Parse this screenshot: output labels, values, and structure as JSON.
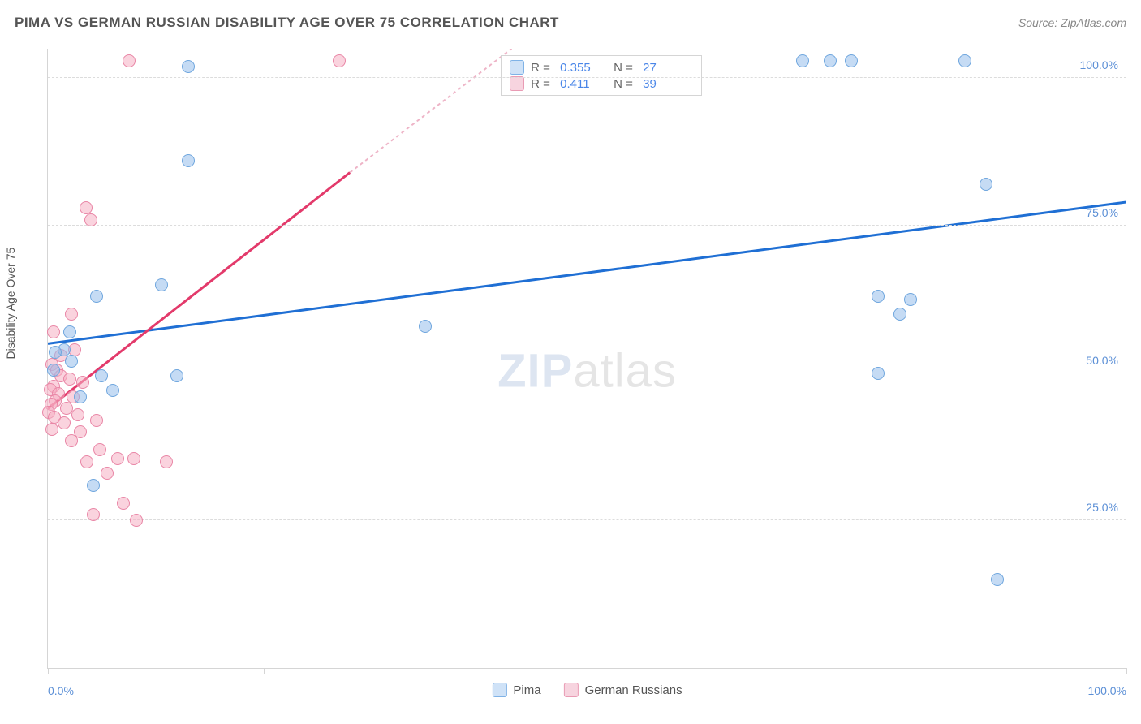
{
  "title": "PIMA VS GERMAN RUSSIAN DISABILITY AGE OVER 75 CORRELATION CHART",
  "source": "Source: ZipAtlas.com",
  "y_axis_label": "Disability Age Over 75",
  "watermark_zip": "ZIP",
  "watermark_atlas": "atlas",
  "chart": {
    "type": "scatter",
    "xlim": [
      0,
      100
    ],
    "ylim": [
      0,
      105
    ],
    "x_tick_positions": [
      0,
      20,
      40,
      60,
      80,
      100
    ],
    "y_ticks": [
      {
        "pos": 25,
        "label": "25.0%"
      },
      {
        "pos": 50,
        "label": "50.0%"
      },
      {
        "pos": 75,
        "label": "75.0%"
      },
      {
        "pos": 100,
        "label": "100.0%"
      }
    ],
    "x_labels": {
      "min": "0.0%",
      "max": "100.0%"
    },
    "background_color": "#ffffff",
    "grid_color": "#dcdcdc",
    "marker_radius": 8,
    "series": [
      {
        "name": "Pima",
        "fill_color": "rgba(150,190,235,0.55)",
        "stroke_color": "#6fa6de",
        "trend_color": "#1f6fd4",
        "trend_width": 3,
        "R": "0.355",
        "N": "27",
        "trend": {
          "x1": 0,
          "y1": 55,
          "x2": 100,
          "y2": 79
        },
        "points": [
          [
            70,
            103
          ],
          [
            72.5,
            103
          ],
          [
            74.5,
            103
          ],
          [
            85,
            103
          ],
          [
            13,
            102
          ],
          [
            13,
            86
          ],
          [
            87,
            82
          ],
          [
            10.5,
            65
          ],
          [
            4.5,
            63
          ],
          [
            77,
            63
          ],
          [
            80,
            62.5
          ],
          [
            79,
            60
          ],
          [
            35,
            58
          ],
          [
            2,
            57
          ],
          [
            1.5,
            54
          ],
          [
            0.7,
            53.5
          ],
          [
            2.2,
            52
          ],
          [
            0.5,
            50.5
          ],
          [
            77,
            50
          ],
          [
            5,
            49.5
          ],
          [
            12,
            49.5
          ],
          [
            6,
            47
          ],
          [
            3,
            46
          ],
          [
            4.2,
            31
          ],
          [
            88,
            15
          ]
        ]
      },
      {
        "name": "German Russians",
        "fill_color": "rgba(245,175,195,0.55)",
        "stroke_color": "#e986a6",
        "trend_color": "#e33a6b",
        "trend_width": 3,
        "trend_dash_color": "#eeb4c7",
        "R": "0.411",
        "N": "39",
        "trend": {
          "x1": 0,
          "y1": 44,
          "x2": 43,
          "y2": 105
        },
        "trend_dash": {
          "x1": 28,
          "y1": 84,
          "x2": 43,
          "y2": 105
        },
        "points": [
          [
            7.5,
            103
          ],
          [
            27,
            103
          ],
          [
            3.5,
            78
          ],
          [
            4,
            76
          ],
          [
            2.2,
            60
          ],
          [
            0.5,
            57
          ],
          [
            2.5,
            54
          ],
          [
            1.2,
            53
          ],
          [
            0.4,
            51.5
          ],
          [
            0.8,
            50.5
          ],
          [
            1.2,
            49.5
          ],
          [
            2,
            49
          ],
          [
            3.2,
            48.5
          ],
          [
            0.5,
            47.8
          ],
          [
            0.2,
            47.2
          ],
          [
            1,
            46.5
          ],
          [
            2.3,
            46
          ],
          [
            0.7,
            45.3
          ],
          [
            0.3,
            44.7
          ],
          [
            1.7,
            44
          ],
          [
            0.1,
            43.3
          ],
          [
            2.8,
            43
          ],
          [
            0.6,
            42.5
          ],
          [
            4.5,
            42
          ],
          [
            1.5,
            41.5
          ],
          [
            0.4,
            40.5
          ],
          [
            3,
            40
          ],
          [
            2.2,
            38.5
          ],
          [
            4.8,
            37
          ],
          [
            3.6,
            35
          ],
          [
            6.5,
            35.5
          ],
          [
            8,
            35.5
          ],
          [
            11,
            35
          ],
          [
            5.5,
            33
          ],
          [
            7,
            28
          ],
          [
            4.2,
            26
          ],
          [
            8.2,
            25
          ]
        ]
      }
    ]
  },
  "swatch_blue_fill": "#cfe2f7",
  "swatch_blue_border": "#7fb2e6",
  "swatch_pink_fill": "#f7d4df",
  "swatch_pink_border": "#e99bb4",
  "legend": {
    "series1": "Pima",
    "series2": "German Russians"
  }
}
